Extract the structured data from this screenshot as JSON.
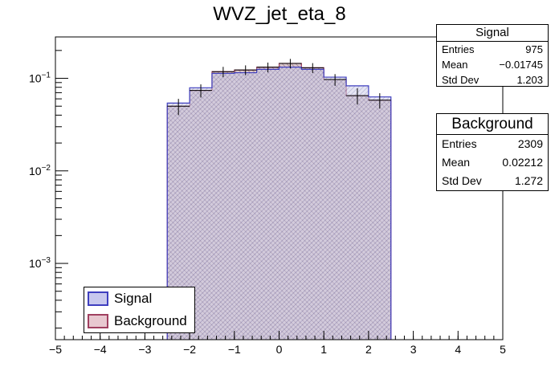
{
  "chart_data": {
    "type": "bar",
    "title": "WVZ_jet_eta_8",
    "xlabel": "",
    "ylabel": "",
    "xlim": [
      -5,
      5
    ],
    "ylog": true,
    "ylim": [
      0.00015,
      0.28
    ],
    "x_ticks": [
      "−5",
      "−4",
      "−3",
      "−2",
      "−1",
      "0",
      "1",
      "2",
      "3",
      "4",
      "5"
    ],
    "x_tick_values": [
      -5,
      -4,
      -3,
      -2,
      -1,
      0,
      1,
      2,
      3,
      4,
      5
    ],
    "y_ticks": [
      {
        "value": 0.1,
        "base": "10",
        "exp": "−1"
      },
      {
        "value": 0.01,
        "base": "10",
        "exp": "−2"
      },
      {
        "value": 0.001,
        "base": "10",
        "exp": "−3"
      }
    ],
    "bin_edges": [
      -2.5,
      -2.0,
      -1.5,
      -1.0,
      -0.5,
      0.0,
      0.5,
      1.0,
      1.5,
      2.0,
      2.5
    ],
    "series": [
      {
        "name": "Signal",
        "color": "#3f3fbf",
        "fill": "#c8c8ee",
        "values": [
          0.054,
          0.079,
          0.113,
          0.115,
          0.125,
          0.132,
          0.125,
          0.103,
          0.083,
          0.063
        ]
      },
      {
        "name": "Background",
        "color": "#a04060",
        "fill": "#e8c8d0",
        "values": [
          0.05,
          0.074,
          0.118,
          0.123,
          0.132,
          0.145,
          0.13,
          0.097,
          0.065,
          0.058
        ]
      }
    ],
    "error_bars": [
      0.01,
      0.012,
      0.015,
      0.015,
      0.016,
      0.017,
      0.016,
      0.014,
      0.013,
      0.011
    ],
    "legend_position": "bottom-left",
    "grid": false
  },
  "stats": {
    "signal": {
      "title": "Signal",
      "rows": [
        {
          "label": "Entries",
          "value": "975"
        },
        {
          "label": "Mean",
          "value": "−0.01745"
        },
        {
          "label": "Std Dev",
          "value": "1.203"
        }
      ]
    },
    "background": {
      "title": "Background",
      "rows": [
        {
          "label": "Entries",
          "value": "2309"
        },
        {
          "label": "Mean",
          "value": "0.02212"
        },
        {
          "label": "Std Dev",
          "value": "1.272"
        }
      ]
    }
  },
  "legend": {
    "signal_label": "Signal",
    "background_label": "Background"
  }
}
